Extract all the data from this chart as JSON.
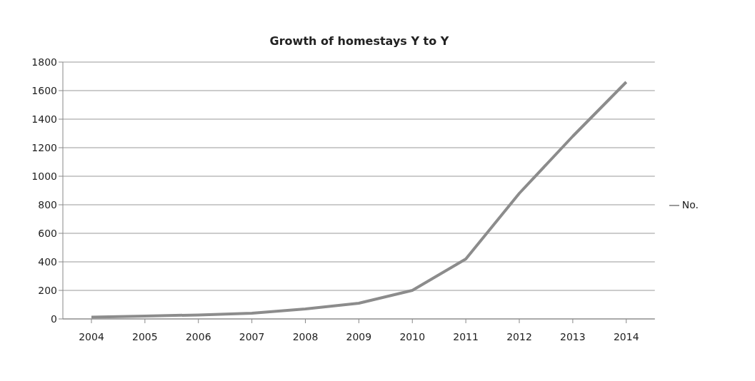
{
  "chart_data": {
    "type": "line",
    "title": "Growth of homestays Y to Y",
    "categories": [
      "2004",
      "2005",
      "2006",
      "2007",
      "2008",
      "2009",
      "2010",
      "2011",
      "2012",
      "2013",
      "2014"
    ],
    "series": [
      {
        "name": "No.",
        "color": "#8c8c8c",
        "values": [
          12,
          20,
          28,
          40,
          70,
          110,
          200,
          420,
          880,
          1280,
          1660
        ]
      }
    ],
    "ylim": [
      0,
      1800
    ],
    "yticks": [
      0,
      200,
      400,
      600,
      800,
      1000,
      1200,
      1400,
      1600,
      1800
    ],
    "grid": "y",
    "legend": "right",
    "marker": "none",
    "line_style": "solid"
  }
}
